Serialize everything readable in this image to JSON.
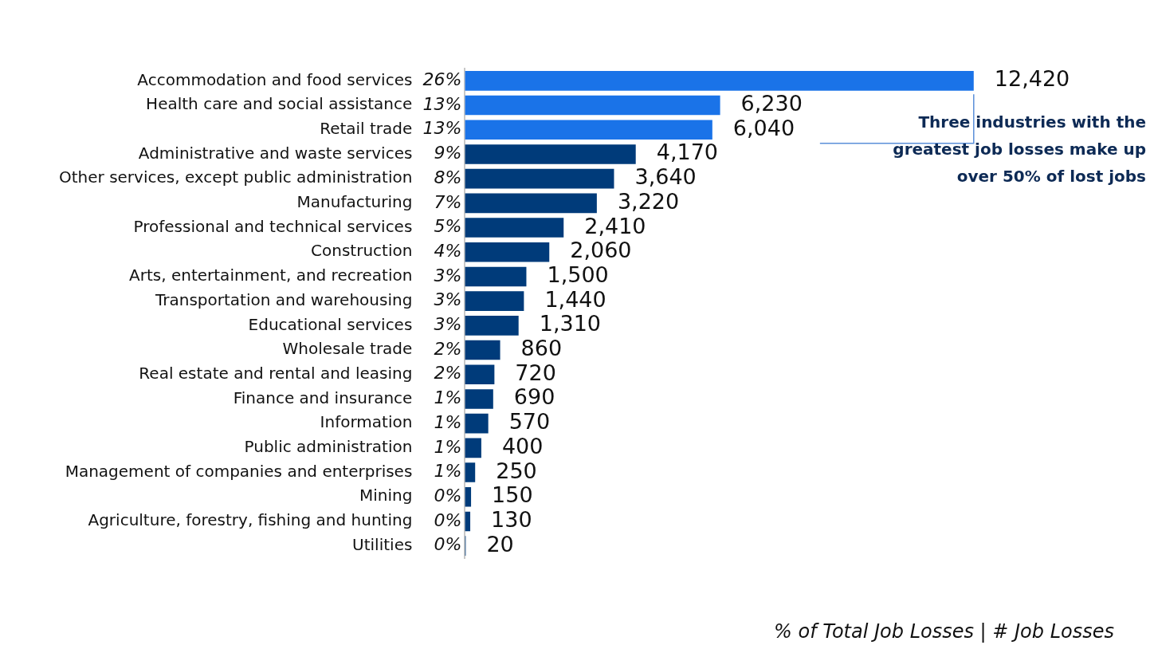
{
  "chart_data": {
    "type": "bar",
    "orientation": "horizontal",
    "xlabel": "% of Total Job Losses | # Job Losses",
    "categories": [
      "Accommodation and food services",
      "Health care and social assistance",
      "Retail trade",
      "Administrative and waste services",
      "Other services, except public administration",
      "Manufacturing",
      "Professional and technical services",
      "Construction",
      "Arts, entertainment, and recreation",
      "Transportation and warehousing",
      "Educational services",
      "Wholesale trade",
      "Real estate and rental and leasing",
      "Finance and insurance",
      "Information",
      "Public administration",
      "Management of companies and enterprises",
      "Mining",
      "Agriculture, forestry, fishing and hunting",
      "Utilities"
    ],
    "values": [
      12420,
      6230,
      6040,
      4170,
      3640,
      3220,
      2410,
      2060,
      1500,
      1440,
      1310,
      860,
      720,
      690,
      570,
      400,
      250,
      150,
      130,
      20
    ],
    "colors": [
      "#1a73e8",
      "#1a73e8",
      "#1a73e8",
      "#003b7a",
      "#003b7a",
      "#003b7a",
      "#003b7a",
      "#003b7a",
      "#003b7a",
      "#003b7a",
      "#003b7a",
      "#003b7a",
      "#003b7a",
      "#003b7a",
      "#003b7a",
      "#003b7a",
      "#003b7a",
      "#003b7a",
      "#003b7a",
      "#003b7a"
    ],
    "tick_labels": "y",
    "value_labels": [
      "12,420",
      "6,230",
      "6,040",
      "4,170",
      "3,640",
      "3,220",
      "2,410",
      "2,060",
      "1,500",
      "1,440",
      "1,310",
      "860",
      "720",
      "690",
      "570",
      "400",
      "250",
      "150",
      "130",
      "20"
    ],
    "annotations": [
      "26%",
      "13%",
      "13%",
      "9%",
      "8%",
      "7%",
      "5%",
      "4%",
      "3%",
      "3%",
      "3%",
      "2%",
      "2%",
      "1%",
      "1%",
      "1%",
      "1%",
      "0%",
      "0%",
      "0%",
      "Three industries with the greatest job losses make up over 50% of lost jobs"
    ]
  }
}
